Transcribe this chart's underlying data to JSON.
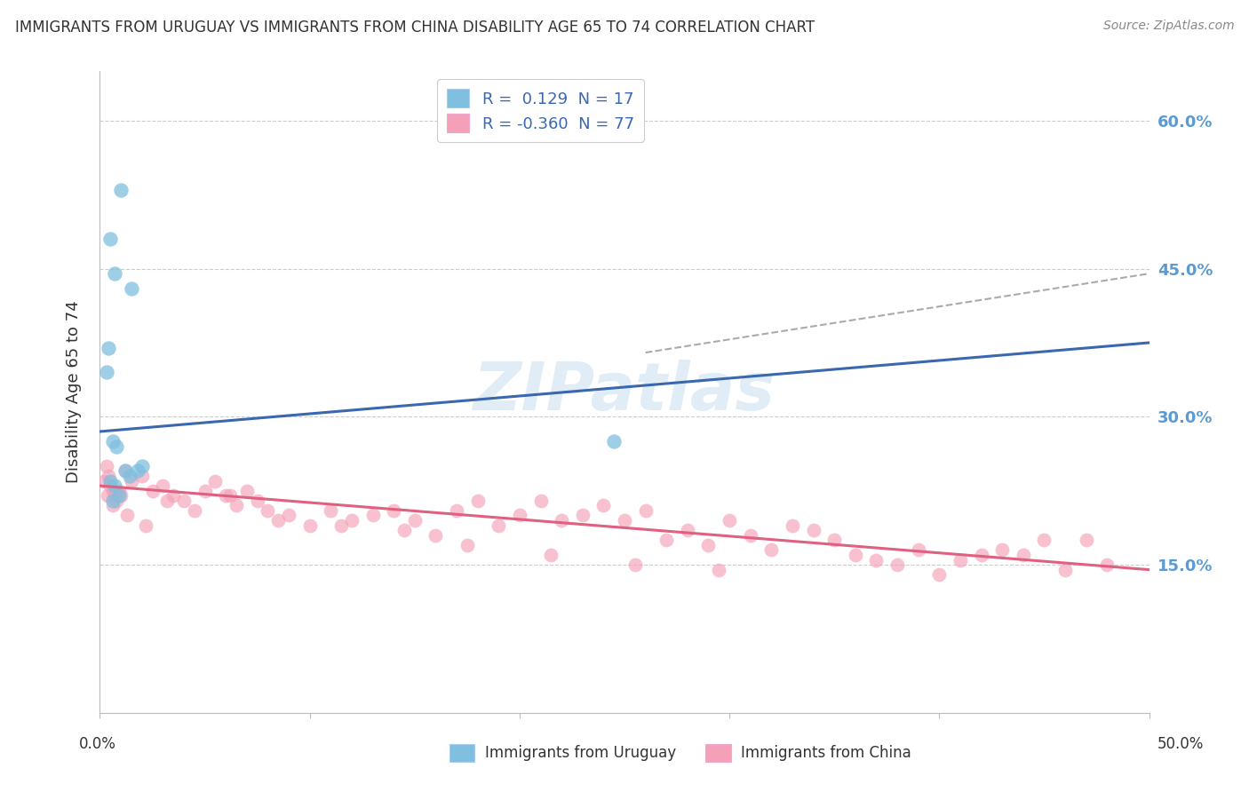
{
  "title": "IMMIGRANTS FROM URUGUAY VS IMMIGRANTS FROM CHINA DISABILITY AGE 65 TO 74 CORRELATION CHART",
  "source": "Source: ZipAtlas.com",
  "ylabel": "Disability Age 65 to 74",
  "xlim": [
    0.0,
    50.0
  ],
  "ylim": [
    0.0,
    65.0
  ],
  "yticks": [
    15.0,
    30.0,
    45.0,
    60.0
  ],
  "uruguay_color": "#7fbfdf",
  "china_color": "#f4a0b8",
  "uruguay_line_color": "#3a68b0",
  "china_line_color": "#e06080",
  "background_color": "#ffffff",
  "grid_color": "#cccccc",
  "watermark": "ZIPatlas",
  "uruguay_x": [
    1.0,
    0.5,
    0.7,
    1.5,
    0.4,
    0.3,
    0.6,
    0.8,
    1.2,
    1.4,
    1.8,
    2.0,
    0.5,
    0.7,
    0.9,
    24.5,
    0.6
  ],
  "uruguay_y": [
    53.0,
    48.0,
    44.5,
    43.0,
    37.0,
    34.5,
    27.5,
    27.0,
    24.5,
    24.0,
    24.5,
    25.0,
    23.5,
    23.0,
    22.0,
    27.5,
    21.5
  ],
  "china_x": [
    0.2,
    0.3,
    0.4,
    0.5,
    0.6,
    0.7,
    0.8,
    1.0,
    1.2,
    1.5,
    2.0,
    2.5,
    3.0,
    3.5,
    4.0,
    5.0,
    5.5,
    6.0,
    6.5,
    7.0,
    7.5,
    8.0,
    9.0,
    10.0,
    11.0,
    12.0,
    13.0,
    14.0,
    15.0,
    16.0,
    17.0,
    18.0,
    19.0,
    20.0,
    21.0,
    22.0,
    23.0,
    24.0,
    25.0,
    26.0,
    27.0,
    28.0,
    29.0,
    30.0,
    31.0,
    32.0,
    33.0,
    34.0,
    35.0,
    36.0,
    37.0,
    38.0,
    39.0,
    40.0,
    41.0,
    42.0,
    43.0,
    44.0,
    45.0,
    46.0,
    47.0,
    48.0,
    0.35,
    0.6,
    0.9,
    1.3,
    2.2,
    3.2,
    4.5,
    6.2,
    8.5,
    11.5,
    14.5,
    17.5,
    21.5,
    25.5,
    29.5
  ],
  "china_y": [
    23.5,
    25.0,
    24.0,
    23.0,
    22.5,
    22.0,
    21.5,
    22.0,
    24.5,
    23.5,
    24.0,
    22.5,
    23.0,
    22.0,
    21.5,
    22.5,
    23.5,
    22.0,
    21.0,
    22.5,
    21.5,
    20.5,
    20.0,
    19.0,
    20.5,
    19.5,
    20.0,
    20.5,
    19.5,
    18.0,
    20.5,
    21.5,
    19.0,
    20.0,
    21.5,
    19.5,
    20.0,
    21.0,
    19.5,
    20.5,
    17.5,
    18.5,
    17.0,
    19.5,
    18.0,
    16.5,
    19.0,
    18.5,
    17.5,
    16.0,
    15.5,
    15.0,
    16.5,
    14.0,
    15.5,
    16.0,
    16.5,
    16.0,
    17.5,
    14.5,
    17.5,
    15.0,
    22.0,
    21.0,
    22.5,
    20.0,
    19.0,
    21.5,
    20.5,
    22.0,
    19.5,
    19.0,
    18.5,
    17.0,
    16.0,
    15.0,
    14.5
  ],
  "uru_line_x0": 0.0,
  "uru_line_y0": 28.5,
  "uru_line_x1": 50.0,
  "uru_line_y1": 37.5,
  "chi_line_x0": 0.0,
  "chi_line_y0": 23.0,
  "chi_line_x1": 50.0,
  "chi_line_y1": 14.5,
  "dash_x0": 26.0,
  "dash_y0": 36.5,
  "dash_x1": 50.0,
  "dash_y1": 44.5
}
